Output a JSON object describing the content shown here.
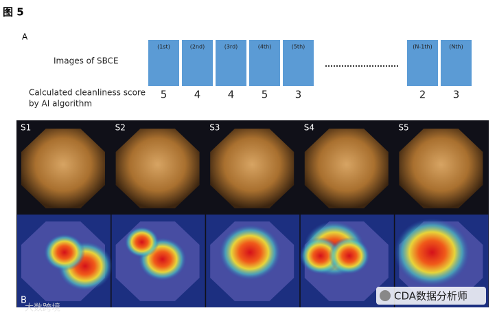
{
  "header": {
    "title": "图 5"
  },
  "panel_a": {
    "label": "A",
    "row_images": "Images of SBCE",
    "row_score_line1": "Calculated cleanliness score",
    "row_score_line2": "by AI algorithm",
    "frames": [
      {
        "label": "(1st)",
        "score": 5
      },
      {
        "label": "(2nd)",
        "score": 4
      },
      {
        "label": "(3rd)",
        "score": 4
      },
      {
        "label": "(4th)",
        "score": 5
      },
      {
        "label": "(5th)",
        "score": 3
      },
      {
        "label": "(N-1th)",
        "score": 2
      },
      {
        "label": "(Nth)",
        "score": 3
      }
    ]
  },
  "panel_b": {
    "label": "B",
    "images": [
      "S1",
      "S2",
      "S3",
      "S4",
      "S5"
    ]
  },
  "watermarks": {
    "left": "大数跨境",
    "right": "CDA数据分析师"
  }
}
